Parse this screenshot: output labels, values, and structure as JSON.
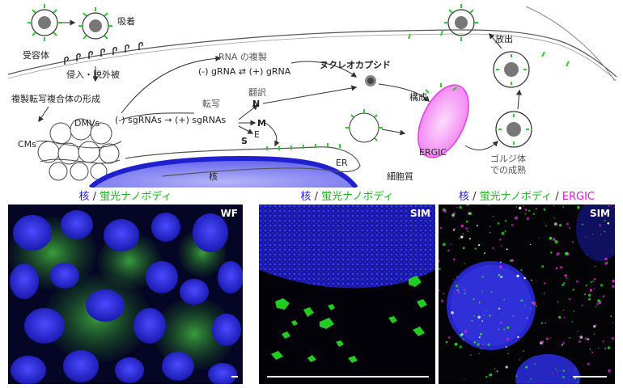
{
  "diagram": {
    "labels": {
      "adsorption": "吸着",
      "receptor": "受容体",
      "entry": "侵入・脱外被",
      "rtc_formation": "複製転写複合体の形成",
      "dmvs": "DMVs",
      "cms": "CMs",
      "rna_replication": "RNA の複製",
      "grna": "(-) gRNA ⇄ (+) gRNA",
      "transcription": "転写",
      "sgrna": "(-) sgRNAs → (+) sgRNAs",
      "translation": "翻訳",
      "protein_n": "N",
      "protein_m": "M",
      "protein_e": "E",
      "protein_s": "S",
      "nucleocapsid": "ヌクレオカプシド",
      "assembly": "構成",
      "release": "放出",
      "er": "ER",
      "ergic": "ERGIC",
      "cytoplasm": "細胞質",
      "golgi_maturation_line1": "ゴルジ体",
      "golgi_maturation_line2": "での成熟",
      "nucleus": "核"
    },
    "colors": {
      "nucleus": "#3232e0",
      "nucleus_light": "#9a9af5",
      "spike": "#2ecc2e",
      "ergic": "#f04cf0",
      "ergic_light": "#f7bff7"
    }
  },
  "panels": [
    {
      "title": [
        {
          "text": "核",
          "color": "blue"
        },
        {
          "text": " / ",
          "color": "sep"
        },
        {
          "text": "蛍光ナノボディ",
          "color": "green"
        }
      ],
      "tag": "WF"
    },
    {
      "title": [
        {
          "text": "核",
          "color": "blue"
        },
        {
          "text": " / ",
          "color": "sep"
        },
        {
          "text": "蛍光ナノボディ",
          "color": "green"
        }
      ],
      "tag": "SIM"
    },
    {
      "title": [
        {
          "text": "核",
          "color": "blue"
        },
        {
          "text": " / ",
          "color": "sep"
        },
        {
          "text": "蛍光ナノボディ",
          "color": "green"
        },
        {
          "text": " / ",
          "color": "sep"
        },
        {
          "text": "ERGIC",
          "color": "magenta"
        }
      ],
      "tag": "SIM"
    }
  ]
}
